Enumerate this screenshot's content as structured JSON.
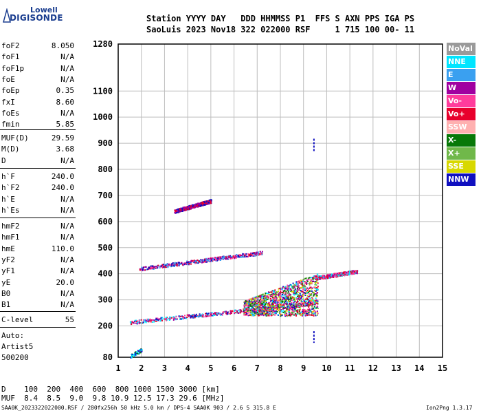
{
  "logo": {
    "brand_top": "Lowell",
    "brand_main": "DIGISONDE"
  },
  "header": {
    "line1": "Station YYYY DAY   DDD HHMMSS P1  FFS S AXN PPS IGA PS",
    "line2": "SaoLuis 2023 Nov18 322 022000 RSF     1 715 100 00- 11"
  },
  "params_group1": [
    {
      "name": "foF2",
      "value": "8.050"
    },
    {
      "name": "foF1",
      "value": "N/A"
    },
    {
      "name": "foF1p",
      "value": "N/A"
    },
    {
      "name": "foE",
      "value": "N/A"
    },
    {
      "name": "foEp",
      "value": "0.35"
    },
    {
      "name": "fxI",
      "value": "8.60"
    },
    {
      "name": "foEs",
      "value": "N/A"
    },
    {
      "name": "fmin",
      "value": "5.85"
    }
  ],
  "params_group2": [
    {
      "name": "MUF(D)",
      "value": "29.59"
    },
    {
      "name": "M(D)",
      "value": "3.68"
    },
    {
      "name": "D",
      "value": "N/A"
    }
  ],
  "params_group3": [
    {
      "name": "h`F",
      "value": "240.0"
    },
    {
      "name": "h`F2",
      "value": "240.0"
    },
    {
      "name": "h`E",
      "value": "N/A"
    },
    {
      "name": "h`Es",
      "value": "N/A"
    }
  ],
  "params_group4": [
    {
      "name": "hmF2",
      "value": "N/A"
    },
    {
      "name": "hmF1",
      "value": "N/A"
    },
    {
      "name": "hmE",
      "value": "110.0"
    },
    {
      "name": "yF2",
      "value": "N/A"
    },
    {
      "name": "yF1",
      "value": "N/A"
    },
    {
      "name": "yE",
      "value": "20.0"
    },
    {
      "name": "B0",
      "value": "N/A"
    },
    {
      "name": "B1",
      "value": "N/A"
    }
  ],
  "params_group5": [
    {
      "name": "C-level",
      "value": "55"
    }
  ],
  "auto": {
    "label": "Auto:",
    "artist": "Artist5",
    "version": "500200"
  },
  "legend": [
    {
      "label": "NoVal",
      "color": "#9a9a9a"
    },
    {
      "label": "NNE",
      "color": "#00e5ff"
    },
    {
      "label": "E",
      "color": "#3aa0f0"
    },
    {
      "label": "W",
      "color": "#a000a0"
    },
    {
      "label": "Vo-",
      "color": "#ff3c9c"
    },
    {
      "label": "Vo+",
      "color": "#e8002c"
    },
    {
      "label": "SSW",
      "color": "#ffb0b0"
    },
    {
      "label": "X-",
      "color": "#087808"
    },
    {
      "label": "X+",
      "color": "#70b84a"
    },
    {
      "label": "SSE",
      "color": "#d8d800"
    },
    {
      "label": "NNW",
      "color": "#1010c0"
    }
  ],
  "chart_data": {
    "type": "scatter",
    "title": "",
    "xlabel": "",
    "ylabel": "",
    "xlim": [
      1,
      15
    ],
    "ylim": [
      80,
      1280
    ],
    "x_ticks": [
      1,
      2,
      3,
      4,
      5,
      6,
      7,
      8,
      9,
      10,
      11,
      12,
      13,
      14,
      15
    ],
    "y_ticks": [
      80,
      200,
      300,
      400,
      500,
      600,
      700,
      800,
      900,
      1000,
      1100,
      1280
    ],
    "grid": true,
    "traces": [
      {
        "name": "F-layer O trace",
        "x_start": 1.5,
        "x_end": 9.6,
        "y_start": 215,
        "y_end": 290,
        "color_mix": [
          "#1010c0",
          "#00e5ff",
          "#a000a0",
          "#ff3c9c",
          "#e8002c"
        ]
      },
      {
        "name": "F-layer 2nd hop",
        "x_start": 1.9,
        "x_end": 7.2,
        "y_start": 420,
        "y_end": 482,
        "color_mix": [
          "#1010c0",
          "#a000a0",
          "#ff3c9c",
          "#e8002c",
          "#3aa0f0"
        ]
      },
      {
        "name": "3rd hop",
        "x_start": 3.4,
        "x_end": 5.0,
        "y_start": 640,
        "y_end": 680,
        "color_mix": [
          "#a000a0",
          "#e8002c",
          "#1010c0"
        ]
      },
      {
        "name": "spread F",
        "x_start": 6.4,
        "x_end": 9.6,
        "y_start": 240,
        "y_end": 380,
        "color_mix": [
          "#e8002c",
          "#ff3c9c",
          "#a000a0",
          "#1010c0",
          "#00e5ff",
          "#087808",
          "#d8d800",
          "#70b84a"
        ]
      },
      {
        "name": "X cluster",
        "x_start": 9.5,
        "x_end": 11.3,
        "y_start": 385,
        "y_end": 410,
        "color_mix": [
          "#ff3c9c",
          "#e8002c",
          "#a000a0",
          "#00e5ff"
        ]
      },
      {
        "name": "low echoes",
        "x_start": 1.5,
        "x_end": 2.0,
        "y_start": 85,
        "y_end": 110,
        "color_mix": [
          "#1010c0",
          "#00e5ff",
          "#087808"
        ]
      }
    ]
  },
  "bottom": {
    "d_row": "D    100  200  400  600  800 1000 1500 3000 [km]",
    "muf_row": "MUF  8.4  8.5  9.0  9.8 10.9 12.5 17.3 29.6 [MHz]"
  },
  "footer": {
    "left": "SAA0K_2023322022000.RSF / 280fx256h 50 kHz 5.0 km / DPS-4 SAA0K 903 / 2.6 S 315.8 E",
    "right": "Ion2Png 1.3.17"
  }
}
